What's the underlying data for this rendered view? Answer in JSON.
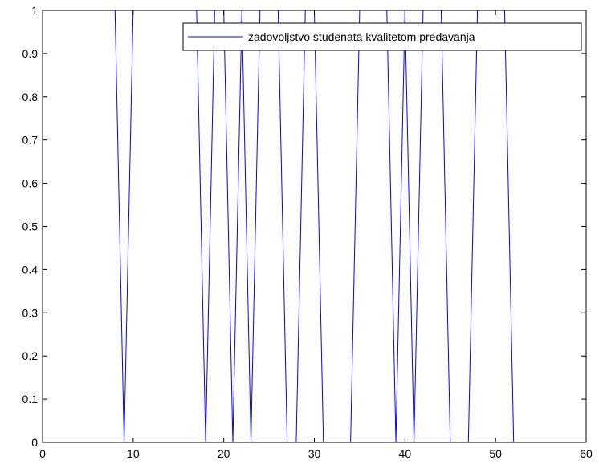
{
  "chart_data": {
    "type": "line",
    "title": "",
    "xlabel": "",
    "ylabel": "",
    "xlim": [
      0,
      60
    ],
    "ylim": [
      0,
      1
    ],
    "x_ticks": [
      0,
      10,
      20,
      30,
      40,
      50,
      60
    ],
    "y_ticks": [
      0,
      0.1,
      0.2,
      0.3,
      0.4,
      0.5,
      0.6,
      0.7,
      0.8,
      0.9,
      1
    ],
    "x_tick_labels": [
      "0",
      "10",
      "20",
      "30",
      "40",
      "50",
      "60"
    ],
    "y_tick_labels": [
      "0",
      "0.1",
      "0.2",
      "0.3",
      "0.4",
      "0.5",
      "0.6",
      "0.7",
      "0.8",
      "0.9",
      "1"
    ],
    "grid": false,
    "legend_position": "top-right",
    "series": [
      {
        "name": "zadovoljstvo studenata kvalitetom predavanja",
        "color": "#0000ff",
        "x": [
          1,
          2,
          3,
          4,
          5,
          6,
          7,
          8,
          9,
          10,
          11,
          12,
          13,
          14,
          15,
          16,
          17,
          18,
          19,
          20,
          21,
          22,
          23,
          24,
          25,
          26,
          27,
          28,
          29,
          30,
          31,
          32,
          33,
          34,
          35,
          36,
          37,
          38,
          39,
          40,
          41,
          42,
          43,
          44,
          45,
          46,
          47,
          48,
          49,
          50,
          51,
          52
        ],
        "y": [
          1,
          1,
          1,
          1,
          1,
          1,
          1,
          1,
          0,
          1,
          1,
          1,
          1,
          1,
          1,
          1,
          1,
          0,
          1,
          1,
          0,
          1,
          0,
          1,
          1,
          1,
          0,
          0,
          1,
          1,
          0,
          0,
          0,
          0,
          1,
          1,
          1,
          1,
          0,
          1,
          0,
          1,
          1,
          1,
          0,
          0,
          0,
          1,
          1,
          1,
          1,
          0
        ]
      }
    ]
  }
}
